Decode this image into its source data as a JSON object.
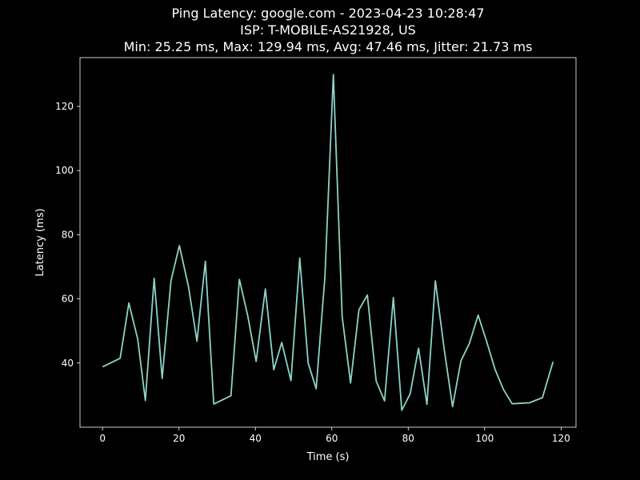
{
  "chart_data": {
    "type": "line",
    "title_lines": [
      "Ping Latency: google.com - 2023-04-23 10:28:47",
      "ISP: T-MOBILE-AS21928, US",
      "Min: 25.25 ms, Max: 129.94 ms, Avg: 47.46 ms, Jitter: 21.73 ms"
    ],
    "xlabel": "Time (s)",
    "ylabel": "Latency (ms)",
    "xlim": [
      -5.9,
      123.9
    ],
    "ylim": [
      20.0,
      135.2
    ],
    "xticks": [
      0,
      20,
      40,
      60,
      80,
      100,
      120
    ],
    "yticks": [
      40,
      60,
      80,
      100,
      120
    ],
    "grid": false,
    "colors": {
      "background": "#000000",
      "axes": "#ffffff",
      "line": "#8dd3c7"
    },
    "series": [
      {
        "x": [
          0.0,
          4.6,
          6.9,
          9.2,
          11.2,
          13.5,
          15.6,
          17.9,
          20.1,
          22.5,
          24.7,
          26.9,
          29.1,
          33.6,
          35.8,
          38.0,
          40.2,
          42.6,
          44.8,
          46.9,
          49.3,
          51.6,
          53.8,
          55.9,
          58.2,
          60.4,
          62.7,
          64.9,
          67.1,
          69.3,
          71.6,
          73.8,
          76.1,
          78.3,
          80.5,
          82.7,
          84.9,
          87.1,
          89.4,
          91.6,
          93.8,
          96.0,
          98.3,
          100.5,
          102.7,
          104.9,
          107.2,
          111.7,
          115.1,
          117.9
        ],
        "y": [
          38.8,
          41.5,
          58.7,
          47.5,
          28.3,
          66.4,
          35.2,
          65.6,
          76.6,
          63.7,
          46.8,
          71.7,
          27.2,
          29.8,
          66.1,
          54.7,
          40.5,
          63.1,
          37.9,
          46.4,
          34.5,
          72.7,
          40.0,
          32.0,
          67.1,
          129.94,
          54.5,
          33.8,
          56.6,
          61.2,
          34.4,
          28.2,
          60.4,
          25.25,
          30.4,
          44.6,
          27.1,
          65.6,
          44.4,
          26.4,
          40.7,
          46.1,
          54.9,
          46.8,
          38.1,
          31.8,
          27.3,
          27.6,
          29.2,
          40.4
        ]
      }
    ]
  }
}
